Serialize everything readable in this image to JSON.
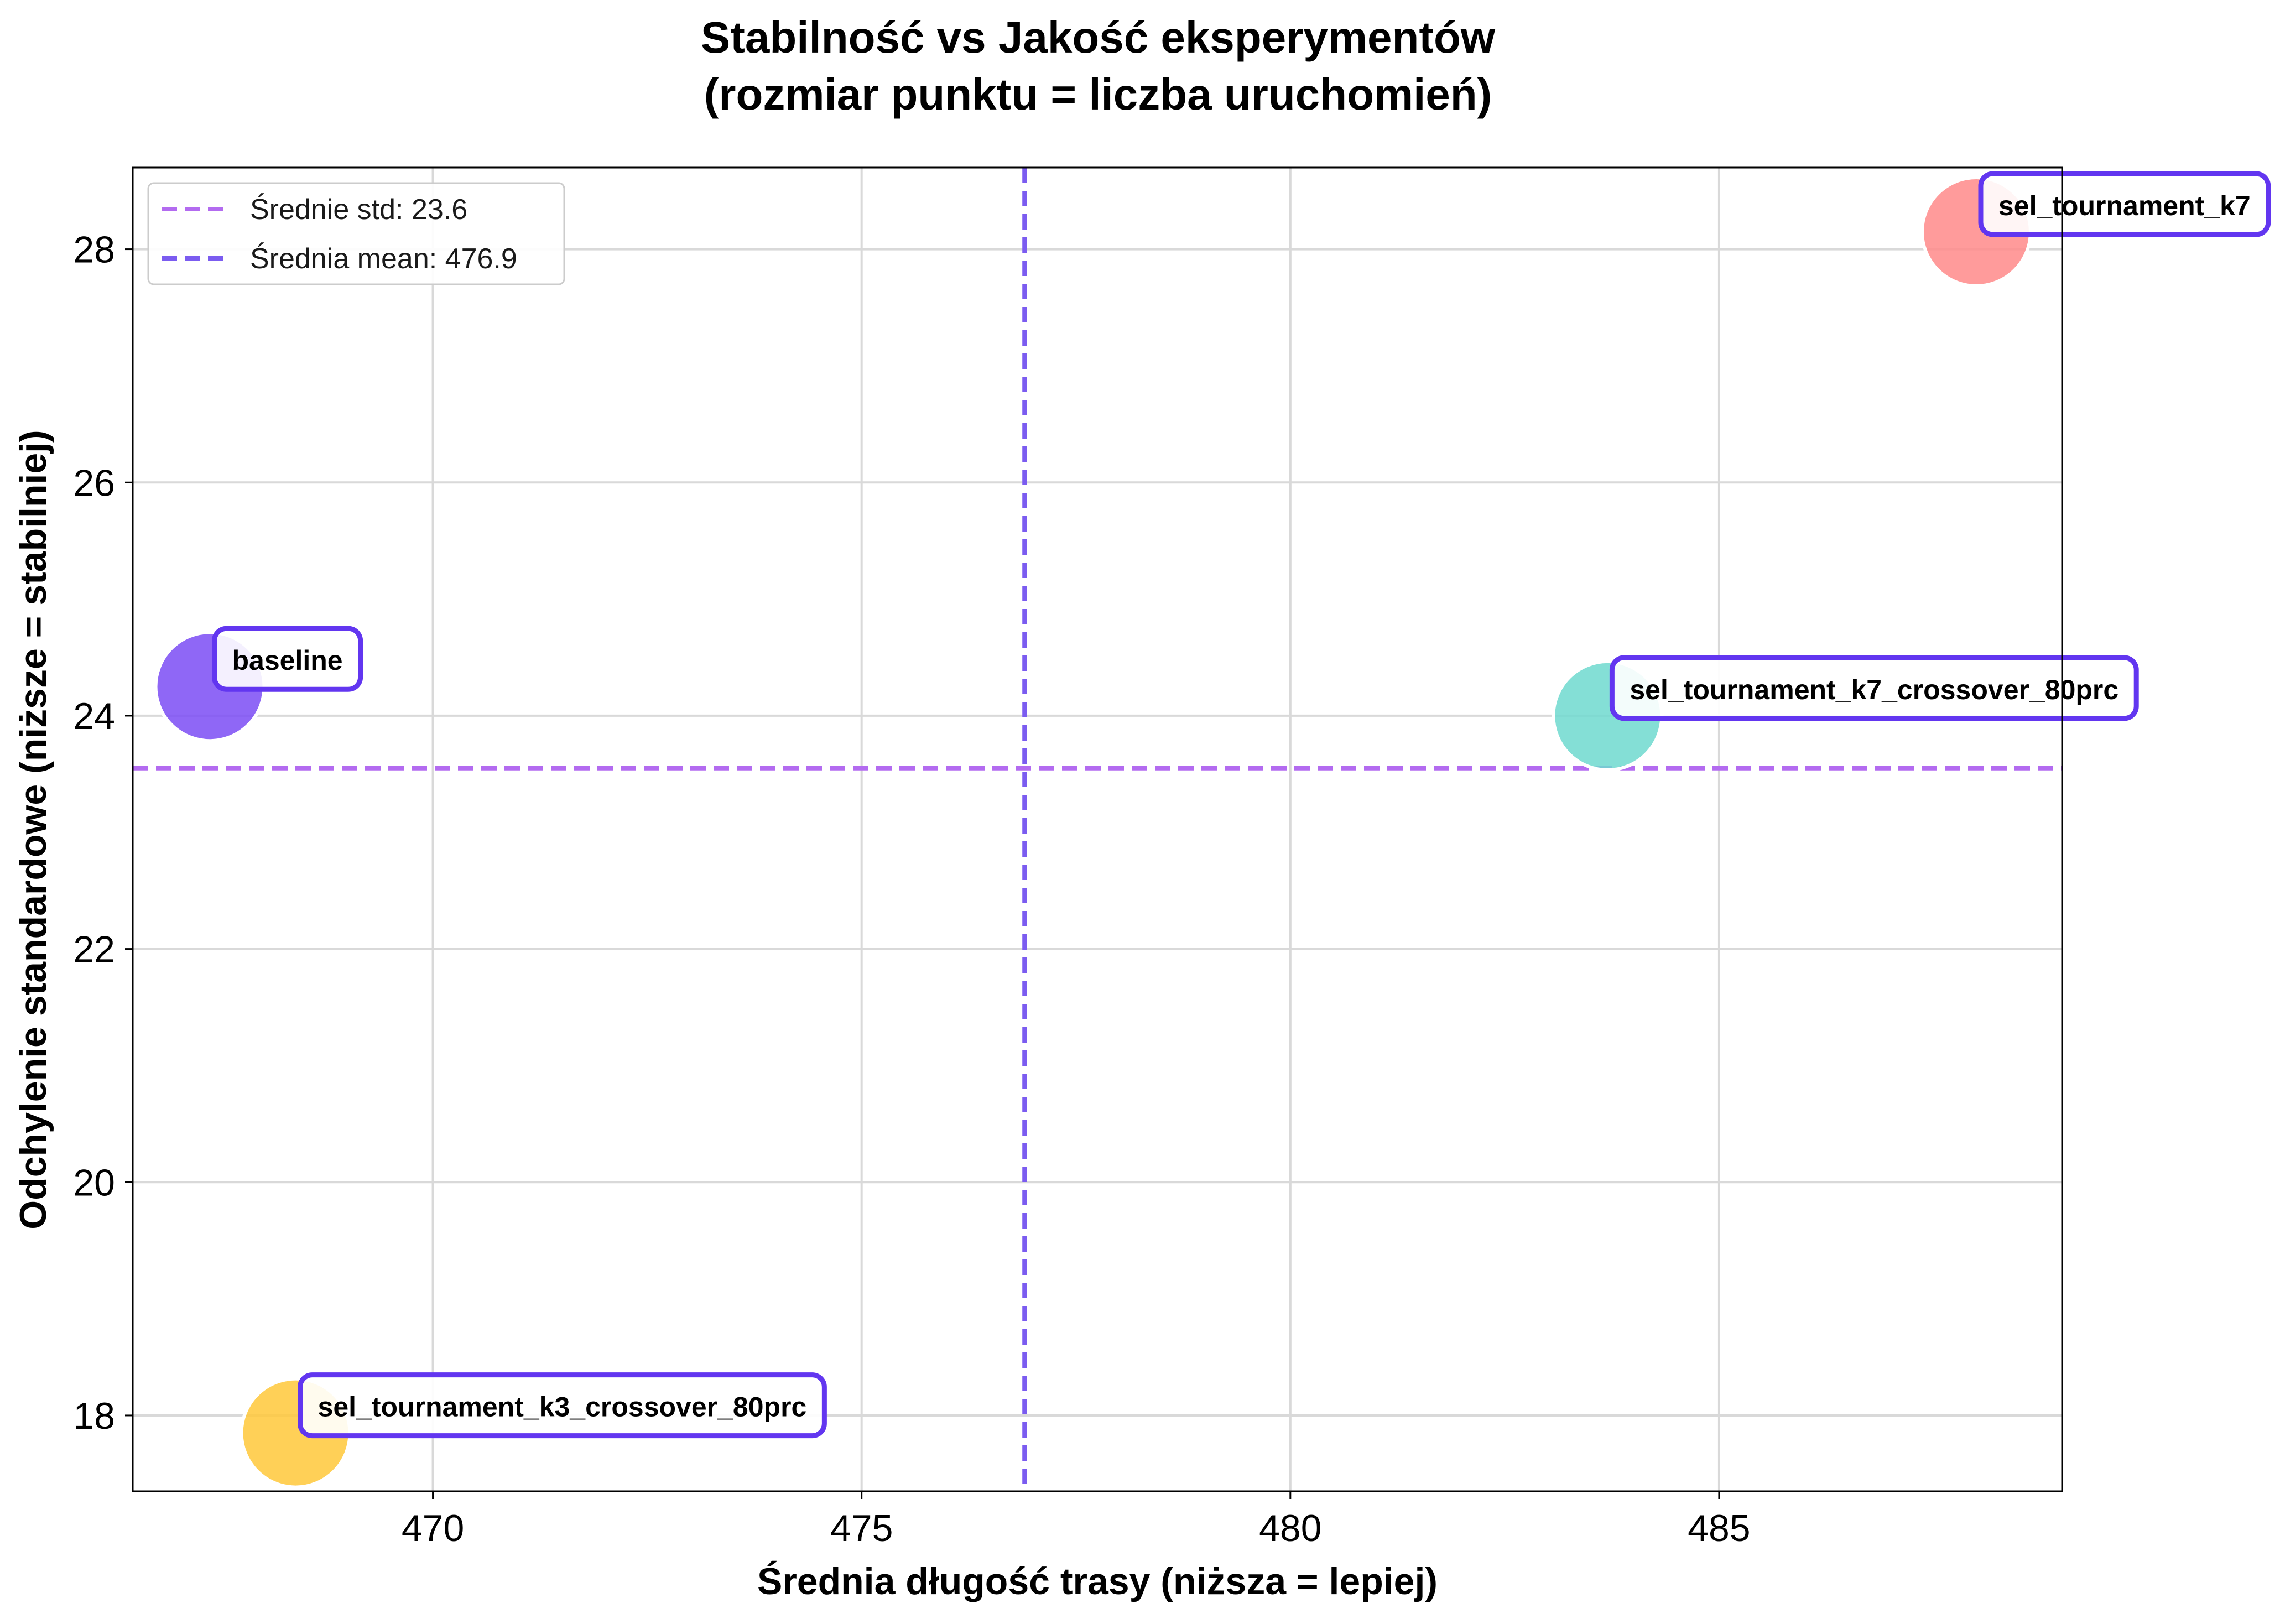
{
  "chart_data": {
    "type": "scatter",
    "title_lines": [
      "Stabilność vs Jakość eksperymentów",
      "(rozmiar punktu = liczba uruchomień)"
    ],
    "xlabel": "Średnia długość trasy (niższa = lepiej)",
    "ylabel": "Odchylenie standardowe (niższe = stabilniej)",
    "xlim": [
      466.5,
      489.0
    ],
    "ylim": [
      17.35,
      28.7
    ],
    "xticks": [
      470,
      475,
      480,
      485
    ],
    "yticks": [
      18,
      20,
      22,
      24,
      26,
      28
    ],
    "grid": true,
    "legend_position": "upper-left",
    "legend": [
      {
        "label": "Średnie std: 23.6",
        "color": "#b36bf0"
      },
      {
        "label": "Średnia mean: 476.9",
        "color": "#7b5cf0"
      }
    ],
    "reference_lines": {
      "mean_std": 23.55,
      "mean_length": 476.9
    },
    "points": [
      {
        "name": "baseline",
        "x": 467.4,
        "y": 24.25,
        "color": "#7b4cf5"
      },
      {
        "name": "sel_tournament_k3_crossover_80prc",
        "x": 468.4,
        "y": 17.85,
        "color": "#ffc83a"
      },
      {
        "name": "sel_tournament_k7_crossover_80prc",
        "x": 483.7,
        "y": 24.0,
        "color": "#6fd9cf"
      },
      {
        "name": "sel_tournament_k7",
        "x": 488.0,
        "y": 28.15,
        "color": "#ff8a8a"
      }
    ],
    "annotation_border_color": "#6236f0"
  }
}
